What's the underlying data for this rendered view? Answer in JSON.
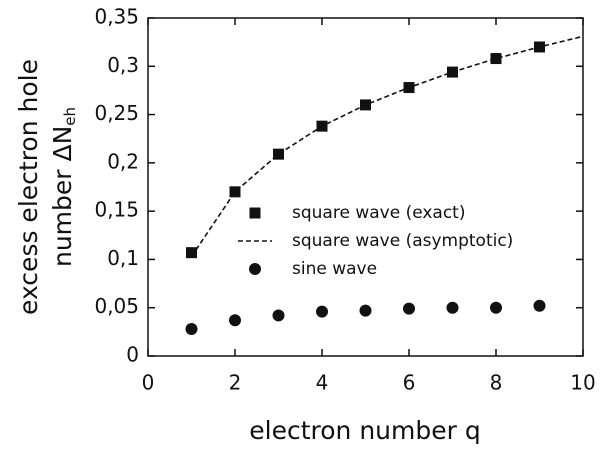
{
  "chart_data": {
    "type": "line",
    "xlabel": "electron number  q",
    "ylabel": [
      "excess electron hole",
      "number ΔN"
    ],
    "ylabel_subscript": "eh",
    "xlim": [
      0,
      10
    ],
    "xticks": [
      0,
      2,
      4,
      6,
      8,
      10
    ],
    "ylim": [
      0,
      0.35
    ],
    "yticks": [
      0,
      {
        "value": 0.05,
        "label": "0,05"
      },
      {
        "value": 0.1,
        "label": "0,1"
      },
      {
        "value": 0.15,
        "label": "0,15"
      },
      {
        "value": 0.2,
        "label": "0,2"
      },
      {
        "value": 0.25,
        "label": "0,25"
      },
      {
        "value": 0.3,
        "label": "0,3"
      },
      {
        "value": 0.35,
        "label": "0,35"
      }
    ],
    "legend": "center right",
    "series": [
      {
        "name": "square wave (exact)",
        "color": "#111111",
        "marker": "square",
        "linestyle": "none",
        "x": [
          1,
          2,
          3,
          4,
          5,
          6,
          7,
          8,
          9
        ],
        "values": [
          0.107,
          0.17,
          0.209,
          0.238,
          0.26,
          0.278,
          0.294,
          0.308,
          0.32
        ]
      },
      {
        "name": "square wave (asymptotic)",
        "color": "#111111",
        "marker": "none",
        "linestyle": "dashed",
        "x": [
          1,
          2,
          3,
          4,
          5,
          6,
          7,
          8,
          9,
          10
        ],
        "values": [
          0.103,
          0.17,
          0.209,
          0.238,
          0.26,
          0.278,
          0.294,
          0.308,
          0.32,
          0.331
        ]
      },
      {
        "name": "sine wave",
        "color": "#111111",
        "marker": "circle",
        "linestyle": "none",
        "x": [
          1,
          2,
          3,
          4,
          5,
          6,
          7,
          8,
          9
        ],
        "values": [
          0.028,
          0.037,
          0.042,
          0.046,
          0.047,
          0.049,
          0.05,
          0.05,
          0.052
        ]
      }
    ]
  }
}
